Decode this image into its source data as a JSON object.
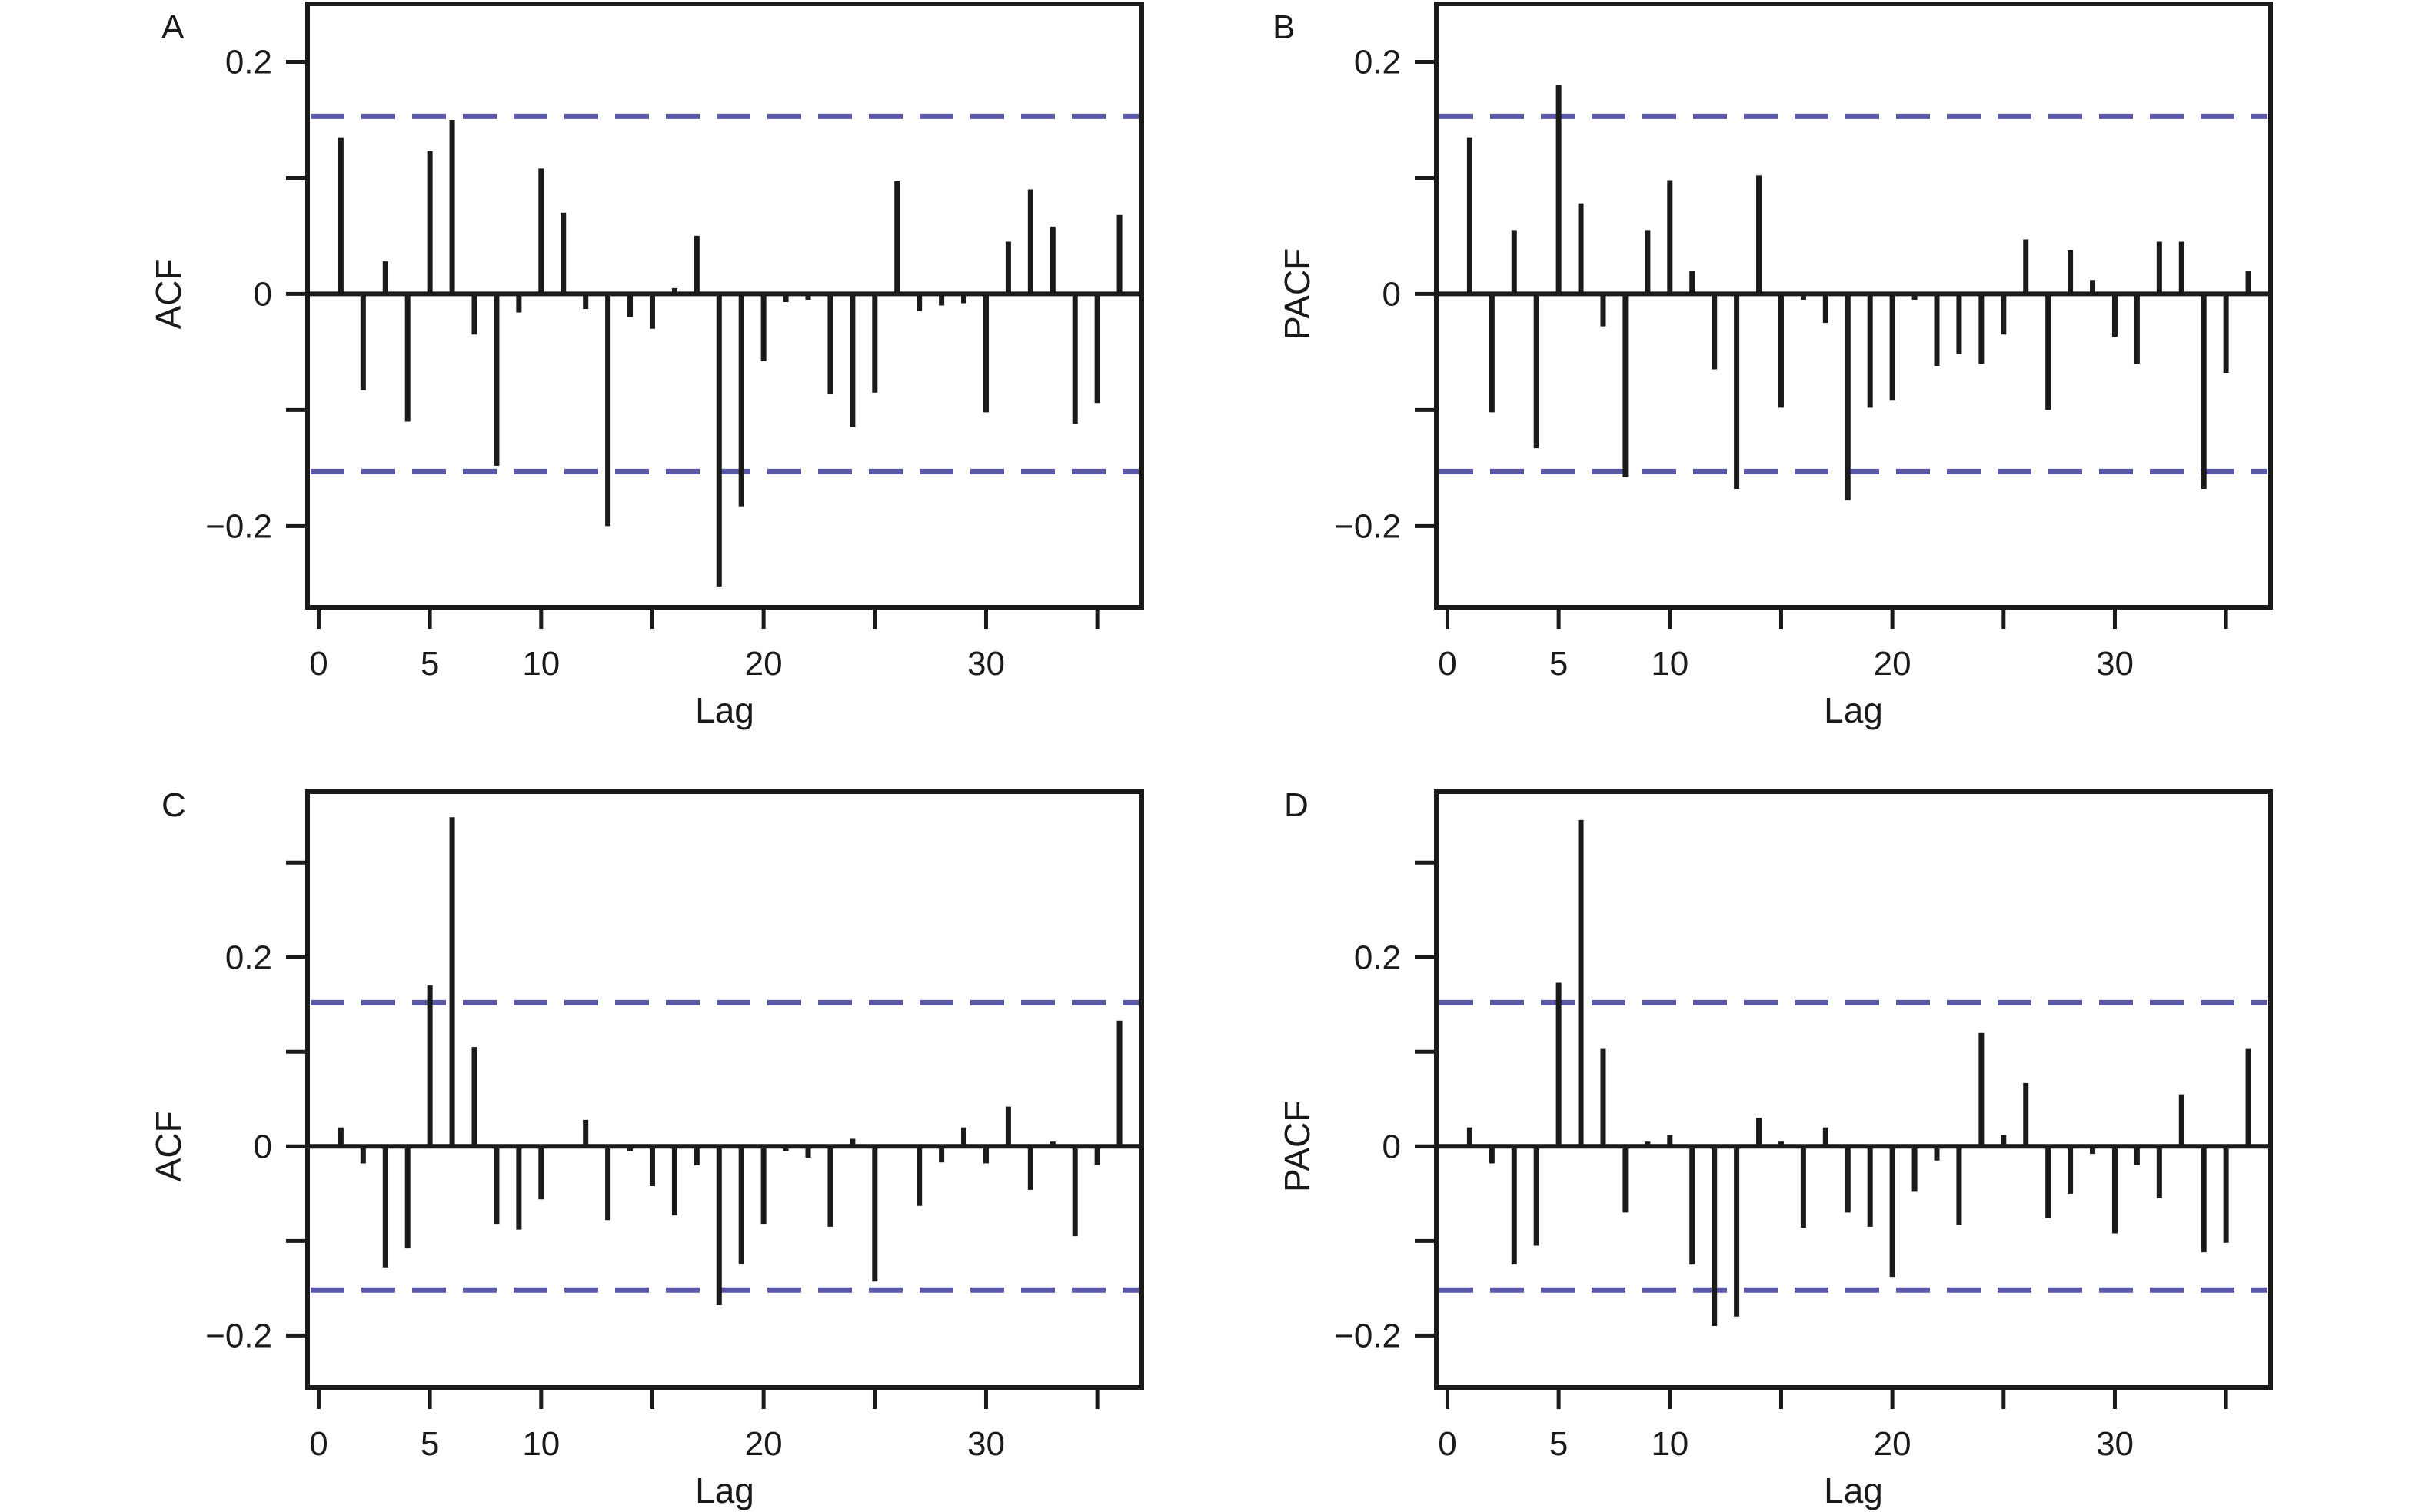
{
  "figure": {
    "colors": {
      "bar": "#1a1a1a",
      "ci_line": "#5a58a6",
      "frame": "#1a1a1a",
      "background": "#ffffff"
    }
  },
  "chart_data": [
    {
      "panel": "A",
      "type": "bar",
      "xlabel": "Lag",
      "ylabel": "ACF",
      "xticks": [
        "0",
        "5",
        "10",
        "20",
        "30"
      ],
      "xtick_values": [
        0,
        5,
        10,
        15,
        20,
        25,
        30,
        35
      ],
      "xtick_labels": [
        "0",
        "5",
        "10",
        "",
        "20",
        "",
        "30",
        ""
      ],
      "yticks": [
        0.2,
        0.1,
        0,
        -0.1,
        -0.2
      ],
      "ytick_labels": [
        "0.2",
        "",
        "0",
        "",
        "−0.2"
      ],
      "xlim": [
        -0.5,
        37
      ],
      "ylim": [
        -0.27,
        0.25
      ],
      "ci": [
        0.153,
        -0.153
      ],
      "lags": [
        1,
        2,
        3,
        4,
        5,
        6,
        7,
        8,
        9,
        10,
        11,
        12,
        13,
        14,
        15,
        16,
        17,
        18,
        19,
        20,
        21,
        22,
        23,
        24,
        25,
        26,
        27,
        28,
        29,
        30,
        31,
        32,
        33,
        34,
        35,
        36
      ],
      "values": [
        0.135,
        -0.083,
        0.028,
        -0.11,
        0.123,
        0.15,
        -0.035,
        -0.148,
        -0.016,
        0.108,
        0.07,
        -0.013,
        -0.2,
        -0.02,
        -0.03,
        0.005,
        0.05,
        -0.252,
        -0.183,
        -0.058,
        -0.007,
        -0.005,
        -0.086,
        -0.115,
        -0.085,
        0.097,
        -0.015,
        -0.01,
        -0.008,
        -0.102,
        0.045,
        0.09,
        0.058,
        -0.112,
        -0.094,
        0.068
      ]
    },
    {
      "panel": "B",
      "type": "bar",
      "xlabel": "Lag",
      "ylabel": "PACF",
      "xticks": [
        "0",
        "5",
        "10",
        "20",
        "30"
      ],
      "xtick_values": [
        0,
        5,
        10,
        15,
        20,
        25,
        30,
        35
      ],
      "xtick_labels": [
        "0",
        "5",
        "10",
        "",
        "20",
        "",
        "30",
        ""
      ],
      "yticks": [
        0.2,
        0.1,
        0,
        -0.1,
        -0.2
      ],
      "ytick_labels": [
        "0.2",
        "",
        "0",
        "",
        "−0.2"
      ],
      "xlim": [
        -0.5,
        37
      ],
      "ylim": [
        -0.27,
        0.25
      ],
      "ci": [
        0.153,
        -0.153
      ],
      "lags": [
        1,
        2,
        3,
        4,
        5,
        6,
        7,
        8,
        9,
        10,
        11,
        12,
        13,
        14,
        15,
        16,
        17,
        18,
        19,
        20,
        21,
        22,
        23,
        24,
        25,
        26,
        27,
        28,
        29,
        30,
        31,
        32,
        33,
        34,
        35,
        36
      ],
      "values": [
        0.135,
        -0.102,
        0.055,
        -0.133,
        0.18,
        0.078,
        -0.028,
        -0.158,
        0.055,
        0.098,
        0.02,
        -0.065,
        -0.168,
        0.102,
        -0.098,
        -0.005,
        -0.025,
        -0.178,
        -0.098,
        -0.092,
        -0.005,
        -0.062,
        -0.052,
        -0.06,
        -0.035,
        0.047,
        -0.1,
        0.038,
        0.012,
        -0.037,
        -0.06,
        0.045,
        0.045,
        -0.168,
        -0.068,
        0.02
      ]
    },
    {
      "panel": "C",
      "type": "bar",
      "xlabel": "Lag",
      "ylabel": "ACF",
      "xticks": [
        "0",
        "5",
        "10",
        "20",
        "30"
      ],
      "xtick_values": [
        0,
        5,
        10,
        15,
        20,
        25,
        30,
        35
      ],
      "xtick_labels": [
        "0",
        "5",
        "10",
        "",
        "20",
        "",
        "30",
        ""
      ],
      "yticks": [
        0.3,
        0.2,
        0.1,
        0,
        -0.1,
        -0.2
      ],
      "ytick_labels": [
        "",
        "0.2",
        "",
        "0",
        "",
        "−0.2"
      ],
      "xlim": [
        -0.5,
        37
      ],
      "ylim": [
        -0.255,
        0.375
      ],
      "ci": [
        0.152,
        -0.152
      ],
      "lags": [
        1,
        2,
        3,
        4,
        5,
        6,
        7,
        8,
        9,
        10,
        11,
        12,
        13,
        14,
        15,
        16,
        17,
        18,
        19,
        20,
        21,
        22,
        23,
        24,
        25,
        26,
        27,
        28,
        29,
        30,
        31,
        32,
        33,
        34,
        35,
        36
      ],
      "values": [
        0.02,
        -0.018,
        -0.128,
        -0.108,
        0.17,
        0.348,
        0.105,
        -0.082,
        -0.088,
        -0.056,
        0,
        0.028,
        -0.078,
        -0.005,
        -0.042,
        -0.073,
        -0.02,
        -0.168,
        -0.125,
        -0.082,
        -0.005,
        -0.012,
        -0.085,
        0.008,
        -0.143,
        0,
        -0.063,
        -0.017,
        0.02,
        -0.018,
        0.042,
        -0.046,
        0.005,
        -0.095,
        -0.02,
        0.133
      ]
    },
    {
      "panel": "D",
      "type": "bar",
      "xlabel": "Lag",
      "ylabel": "PACF",
      "xticks": [
        "0",
        "5",
        "10",
        "20",
        "30"
      ],
      "xtick_values": [
        0,
        5,
        10,
        15,
        20,
        25,
        30,
        35
      ],
      "xtick_labels": [
        "0",
        "5",
        "10",
        "",
        "20",
        "",
        "30",
        ""
      ],
      "yticks": [
        0.3,
        0.2,
        0.1,
        0,
        -0.1,
        -0.2
      ],
      "ytick_labels": [
        "",
        "0.2",
        "",
        "0",
        "",
        "−0.2"
      ],
      "xlim": [
        -0.5,
        37
      ],
      "ylim": [
        -0.255,
        0.375
      ],
      "ci": [
        0.152,
        -0.152
      ],
      "lags": [
        1,
        2,
        3,
        4,
        5,
        6,
        7,
        8,
        9,
        10,
        11,
        12,
        13,
        14,
        15,
        16,
        17,
        18,
        19,
        20,
        21,
        22,
        23,
        24,
        25,
        26,
        27,
        28,
        29,
        30,
        31,
        32,
        33,
        34,
        35,
        36
      ],
      "values": [
        0.02,
        -0.018,
        -0.125,
        -0.105,
        0.173,
        0.345,
        0.103,
        -0.07,
        0.005,
        0.012,
        -0.125,
        -0.19,
        -0.18,
        0.03,
        0.005,
        -0.086,
        0.02,
        -0.07,
        -0.085,
        -0.138,
        -0.048,
        -0.015,
        -0.083,
        0.12,
        0.012,
        0.067,
        -0.076,
        -0.05,
        -0.008,
        -0.092,
        -0.02,
        -0.055,
        0.055,
        -0.112,
        -0.102,
        0.103
      ]
    }
  ]
}
